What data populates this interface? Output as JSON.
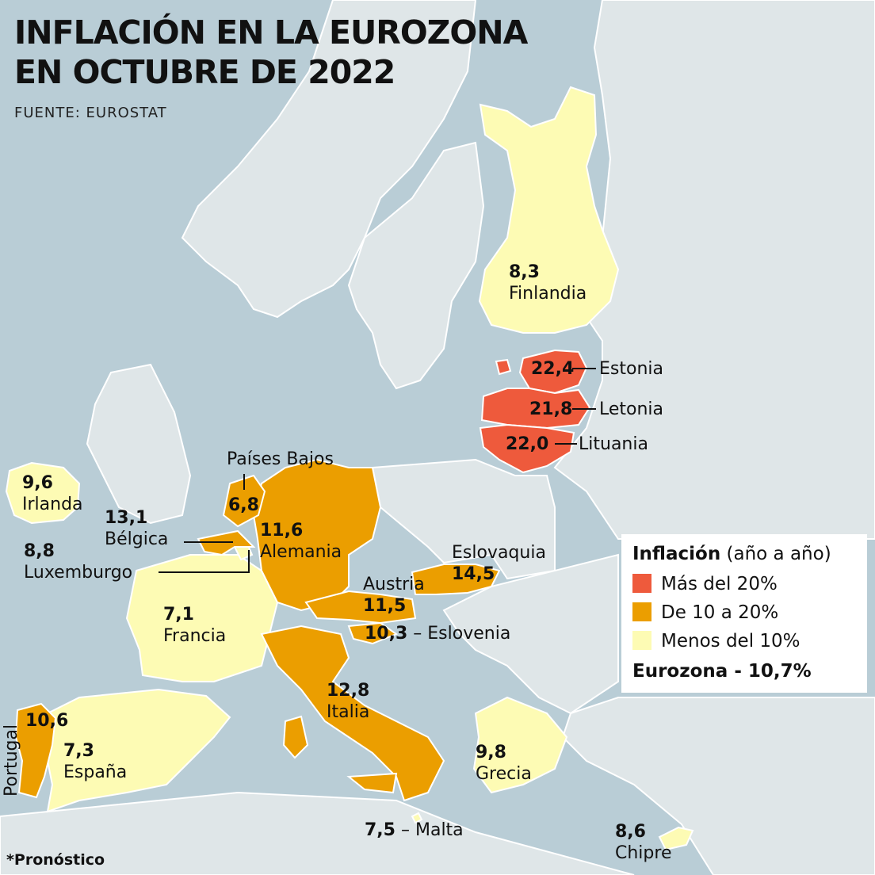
{
  "title_line1": "INFLACIÓN EN LA EUROZONA",
  "title_line2": "EN OCTUBRE DE 2022",
  "source": "FUENTE: EUROSTAT",
  "footnote": "*Pronóstico",
  "colors": {
    "sea": "#b9cdd6",
    "land": "#dfe6e8",
    "high": "#ee5a3c",
    "mid": "#eb9e00",
    "low": "#fdfbb4",
    "border": "#ffffff"
  },
  "legend": {
    "title_bold": "Inflación",
    "title_rest": " (año a año)",
    "items": [
      {
        "label": "Más del 20%",
        "color": "#ee5a3c"
      },
      {
        "label": "De 10 a 20%",
        "color": "#eb9e00"
      },
      {
        "label": "Menos del 10%",
        "color": "#fdfbb4"
      }
    ],
    "eurozone": "Eurozona - 10,7%"
  },
  "countries": {
    "finlandia": {
      "value": "8,3",
      "name": "Finlandia"
    },
    "estonia": {
      "value": "22,4",
      "name": "Estonia"
    },
    "letonia": {
      "value": "21,8",
      "name": "Letonia"
    },
    "lituania": {
      "value": "22,0",
      "name": "Lituania"
    },
    "paises_bajos": {
      "value": "6,8",
      "name": "Países Bajos"
    },
    "irlanda": {
      "value": "9,6",
      "name": "Irlanda"
    },
    "belgica": {
      "value": "13,1",
      "name": "Bélgica"
    },
    "alemania": {
      "value": "11,6",
      "name": "Alemania"
    },
    "luxemburgo": {
      "value": "8,8",
      "name": "Luxemburgo"
    },
    "eslovaquia": {
      "value": "14,5",
      "name": "Eslovaquia"
    },
    "austria": {
      "value": "11,5",
      "name": "Austria"
    },
    "francia": {
      "value": "7,1",
      "name": "Francia"
    },
    "eslovenia": {
      "value": "10,3",
      "name": "Eslovenia"
    },
    "italia": {
      "value": "12,8",
      "name": "Italia"
    },
    "portugal": {
      "value": "10,6",
      "name": "Portugal"
    },
    "espana": {
      "value": "7,3",
      "name": "España"
    },
    "grecia": {
      "value": "9,8",
      "name": "Grecia"
    },
    "malta": {
      "value": "7,5",
      "name": "Malta"
    },
    "chipre": {
      "value": "8,6",
      "name": "Chipre"
    }
  }
}
